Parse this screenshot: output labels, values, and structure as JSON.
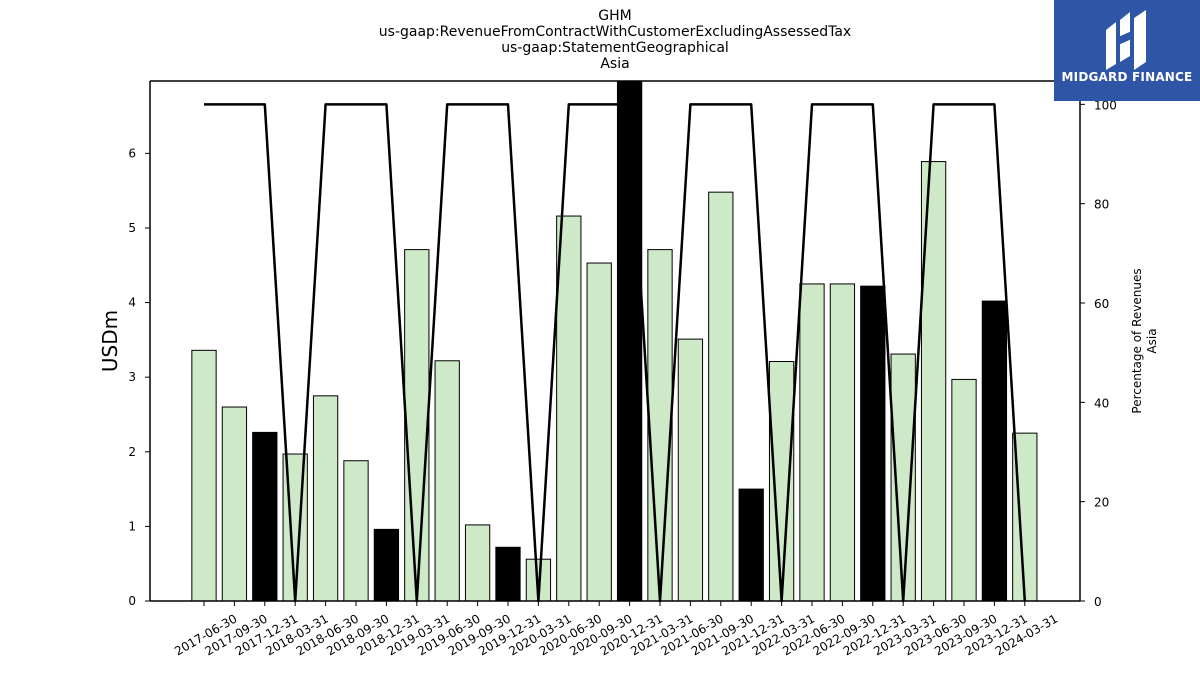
{
  "chart_data": {
    "type": "bar",
    "title_lines": [
      "GHM",
      "us-gaap:RevenueFromContractWithCustomerExcludingAssessedTax",
      "us-gaap:StatementGeographical",
      "Asia"
    ],
    "ylabel": "USDm",
    "y2label_lines": [
      "Percentage of Revenues",
      "Asia"
    ],
    "ylim": [
      0,
      6.97
    ],
    "y2lim": [
      0,
      104.7
    ],
    "yticks": [
      0,
      1,
      2,
      3,
      4,
      5,
      6
    ],
    "y2ticks": [
      0,
      20,
      40,
      60,
      80,
      100
    ],
    "categories": [
      "2017-06-30",
      "2017-09-30",
      "2017-12-31",
      "2018-03-31",
      "2018-06-30",
      "2018-09-30",
      "2018-12-31",
      "2019-03-31",
      "2019-06-30",
      "2019-09-30",
      "2019-12-31",
      "2020-03-31",
      "2020-06-30",
      "2020-09-30",
      "2020-12-31",
      "2021-03-31",
      "2021-06-30",
      "2021-09-30",
      "2021-12-31",
      "2022-03-31",
      "2022-06-30",
      "2022-09-30",
      "2022-12-31",
      "2023-03-31",
      "2023-06-30",
      "2023-09-30",
      "2023-12-31",
      "2024-03-31"
    ],
    "series": [
      {
        "type": "bar",
        "values": [
          3.36,
          2.6,
          2.26,
          1.97,
          2.75,
          1.88,
          0.96,
          4.71,
          3.22,
          1.02,
          0.72,
          0.56,
          5.16,
          4.53,
          7.0,
          4.71,
          3.51,
          5.48,
          1.5,
          3.21,
          4.25,
          4.25,
          4.22,
          3.31,
          5.89,
          2.97,
          4.02,
          2.25
        ],
        "highlight": [
          false,
          false,
          true,
          false,
          false,
          false,
          true,
          false,
          false,
          false,
          true,
          false,
          false,
          false,
          true,
          false,
          false,
          false,
          true,
          false,
          false,
          false,
          true,
          false,
          false,
          false,
          true,
          false
        ]
      },
      {
        "type": "line",
        "axis": "right",
        "values": [
          100,
          100,
          100,
          0,
          100,
          100,
          100,
          0,
          100,
          100,
          100,
          0,
          100,
          100,
          100,
          0,
          100,
          100,
          100,
          0,
          100,
          100,
          100,
          0,
          100,
          100,
          100,
          0
        ]
      }
    ],
    "colors": {
      "bar": "#cde9c7",
      "highlight": "#000000",
      "line": "#000000",
      "edge": "#000000"
    }
  },
  "logo": {
    "text": "MIDGARD FINANCE"
  }
}
